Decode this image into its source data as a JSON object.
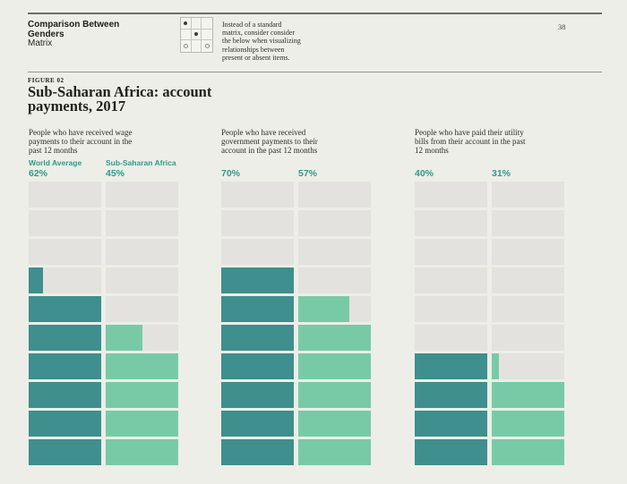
{
  "page": {
    "background_color": "#eceee7",
    "page_number": "38"
  },
  "header": {
    "title_lines": [
      "Comparison Between",
      "Genders"
    ],
    "subtitle": "Matrix",
    "description_lines": [
      "Instead of a standard",
      "matrix, consider consider",
      "the below when visualizing",
      "relationships between",
      "present or absent items."
    ],
    "icon_pattern": [
      "dot",
      "",
      "",
      "",
      "dot",
      "",
      "circle",
      "",
      "circle"
    ]
  },
  "figure": {
    "label": "FIGURE 02",
    "title_lines": [
      "Sub-Saharan Africa: account",
      "payments, 2017"
    ]
  },
  "chart_data": {
    "type": "waffle-bar",
    "title": "Sub-Saharan Africa: account payments, 2017",
    "unit": "percent",
    "rows_per_column": 10,
    "block_value": 10,
    "fill_direction": "bottom-up",
    "accent_text_color": "#2f9a8b",
    "empty_color": "#e3e2de",
    "series": [
      {
        "name": "World Average",
        "color": "#3e8f8d"
      },
      {
        "name": "Sub-Saharan Africa",
        "color": "#78caa7"
      }
    ],
    "groups": [
      {
        "description_lines": [
          "People who have received wage",
          "payments to their account in the",
          "past 12 months"
        ],
        "values": [
          62,
          45
        ],
        "value_labels": [
          "62%",
          "45%"
        ],
        "show_series_labels": true
      },
      {
        "description_lines": [
          "People who have received",
          "government payments to their",
          "account in the past 12 months"
        ],
        "values": [
          70,
          57
        ],
        "value_labels": [
          "70%",
          "57%"
        ],
        "show_series_labels": false
      },
      {
        "description_lines": [
          "People who have paid their utility",
          "bills from their account in the past",
          "12 months"
        ],
        "values": [
          40,
          31
        ],
        "value_labels": [
          "40%",
          "31%"
        ],
        "show_series_labels": false
      }
    ]
  }
}
